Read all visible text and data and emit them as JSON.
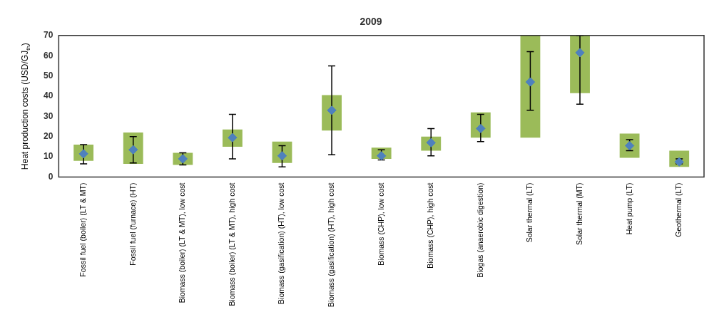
{
  "chart_data": {
    "type": "bar",
    "title": "2009",
    "ylabel": "Heat production costs (USD/GJ$_{th}$)",
    "categories": [
      "Fossil fuel (boiler) (LT & MT)",
      "Fossil fuel (furnace) (HT)",
      "Biomass (boiler) (LT & MT), low cost",
      "Biomass (boiler) (LT & MT), high cost",
      "Biomass (gasification) (HT), low cost",
      "Biomass (gasification) (HT), high cost",
      "Biomass (CHP), low cost",
      "Biomass (CHP), high cost",
      "Biogas (anaerobic digestion)",
      "Solar thermal (LT)",
      "Solar thermal (MT)",
      "Heat pump (LT)",
      "Geothermal (LT)"
    ],
    "series": [
      {
        "color": "#9bbb59",
        "base": [
          8,
          6.5,
          6,
          15,
          7,
          23,
          9,
          13,
          19.5,
          19.5,
          41.5,
          9.5,
          5
        ],
        "values": [
          8,
          15.5,
          6,
          8.5,
          10.5,
          17.5,
          5.5,
          7,
          12.5,
          50.5,
          28.5,
          12,
          8
        ]
      },
      {
        "type": "scatter",
        "color": "#4f81bd",
        "marker": "diamond",
        "values": [
          11.5,
          13.5,
          9,
          19.5,
          10.5,
          33,
          10.5,
          17,
          24,
          47,
          61.5,
          15.5,
          7.5
        ],
        "errors": [
          [
            6.5,
            16
          ],
          [
            7,
            20
          ],
          [
            6,
            12
          ],
          [
            9,
            31
          ],
          [
            5,
            15.5
          ],
          [
            11,
            55
          ],
          [
            8.5,
            13.5
          ],
          [
            10.5,
            24
          ],
          [
            17.5,
            31
          ],
          [
            33,
            62
          ],
          [
            36,
            70
          ],
          [
            13,
            18.5
          ],
          [
            6.5,
            9
          ]
        ]
      }
    ],
    "ylim": [
      0,
      70
    ],
    "yticks": [
      0,
      10,
      20,
      30,
      40,
      50,
      60,
      70
    ],
    "grid": false,
    "legend": false
  }
}
